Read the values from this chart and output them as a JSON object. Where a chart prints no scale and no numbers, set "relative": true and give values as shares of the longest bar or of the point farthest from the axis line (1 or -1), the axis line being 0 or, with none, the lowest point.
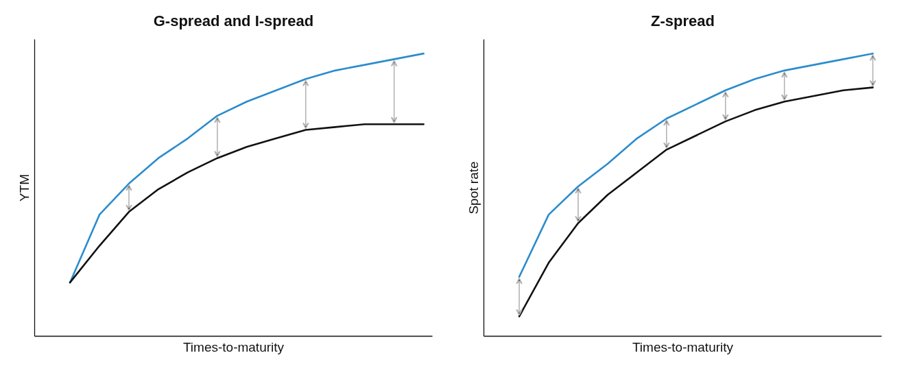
{
  "chart_data": [
    {
      "type": "line",
      "title": "G-spread and I-spread",
      "xlabel": "Times-to-maturity",
      "ylabel": "YTM",
      "relative": true,
      "tick_labels": false,
      "categories": [
        null,
        null,
        null,
        null,
        null,
        null,
        null,
        null,
        null,
        null,
        null,
        null,
        null
      ],
      "series": [
        {
          "color": "#2b8ccc",
          "values": [
            0.19,
            0.43,
            0.54,
            0.63,
            0.7,
            0.78,
            0.83,
            0.87,
            0.91,
            0.94,
            0.96,
            0.98,
            1.0
          ]
        },
        {
          "color": "#111111",
          "values": [
            0.19,
            0.32,
            0.44,
            0.52,
            0.58,
            0.63,
            0.67,
            0.7,
            0.73,
            0.74,
            0.75,
            0.75,
            0.75
          ]
        }
      ]
    },
    {
      "type": "line",
      "title": "Z-spread",
      "xlabel": "Times-to-maturity",
      "ylabel": "Spot rate",
      "relative": true,
      "tick_labels": false,
      "categories": [
        null,
        null,
        null,
        null,
        null,
        null,
        null,
        null,
        null,
        null,
        null,
        null,
        null
      ],
      "series": [
        {
          "color": "#2b8ccc",
          "values": [
            0.21,
            0.43,
            0.53,
            0.61,
            0.7,
            0.77,
            0.82,
            0.87,
            0.91,
            0.94,
            0.96,
            0.98,
            1.0
          ]
        },
        {
          "color": "#111111",
          "values": [
            0.07,
            0.26,
            0.4,
            0.5,
            0.58,
            0.66,
            0.71,
            0.76,
            0.8,
            0.83,
            0.85,
            0.87,
            0.88
          ]
        }
      ]
    }
  ]
}
